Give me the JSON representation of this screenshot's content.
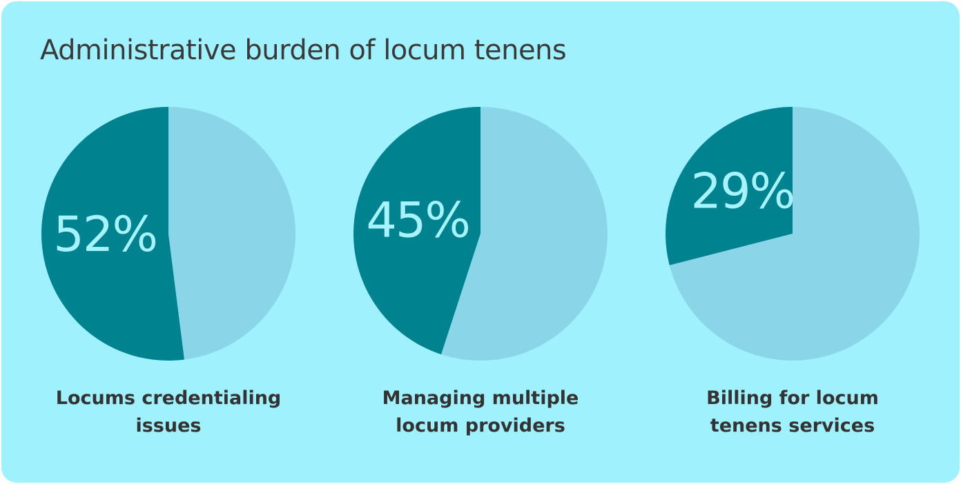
{
  "title": "Administrative burden of locum tenens",
  "chart_data": [
    {
      "type": "pie",
      "title": "Locums credentialing issues",
      "values": [
        52,
        48
      ],
      "value_labels": [
        "52%",
        null
      ],
      "colors": [
        "#00838f",
        "#8ad6e8"
      ]
    },
    {
      "type": "pie",
      "title": "Managing multiple locum providers",
      "values": [
        45,
        55
      ],
      "value_labels": [
        "45%",
        null
      ],
      "colors": [
        "#00838f",
        "#8ad6e8"
      ]
    },
    {
      "type": "pie",
      "title": "Billing for locum tenens services",
      "values": [
        29,
        71
      ],
      "value_labels": [
        "29%",
        null
      ],
      "colors": [
        "#00838f",
        "#8ad6e8"
      ]
    }
  ]
}
